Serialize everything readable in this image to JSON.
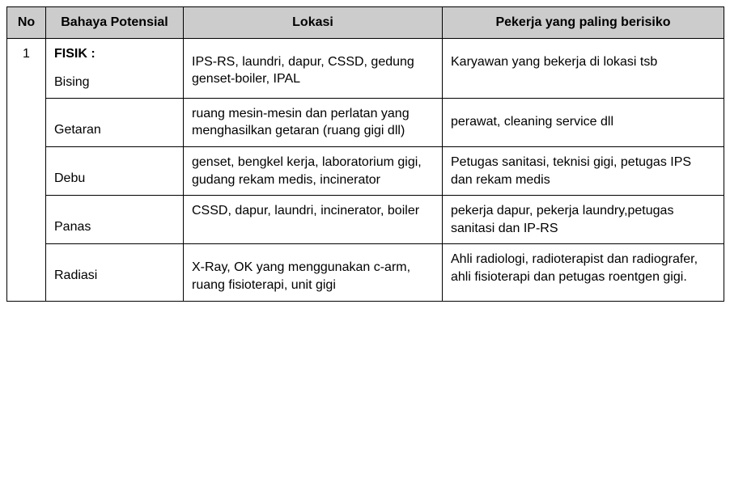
{
  "columns": {
    "no": "No",
    "hazard": "Bahaya Potensial",
    "location": "Lokasi",
    "workers": "Pekerja yang paling berisiko"
  },
  "group_no": "1",
  "category_heading": "FISIK :",
  "rows": [
    {
      "hazard": "Bising",
      "location": "IPS-RS, laundri, dapur, CSSD, gedung genset-boiler, IPAL",
      "workers": "Karyawan yang bekerja di lokasi tsb"
    },
    {
      "hazard": "Getaran",
      "location": "ruang mesin-mesin dan perlatan yang menghasilkan getaran (ruang gigi dll)",
      "workers": "perawat, cleaning service dll"
    },
    {
      "hazard": "Debu",
      "location": "genset, bengkel kerja, laboratorium gigi, gudang rekam medis, incinerator",
      "workers": "Petugas sanitasi, teknisi gigi, petugas IPS dan rekam medis"
    },
    {
      "hazard": "Panas",
      "location": "CSSD, dapur, laundri, incinerator, boiler",
      "workers": "pekerja dapur, pekerja laundry,petugas sanitasi dan IP-RS"
    },
    {
      "hazard": "Radiasi",
      "location": "X-Ray, OK yang menggunakan c-arm, ruang fisioterapi, unit gigi",
      "workers": "Ahli radiologi, radioterapist dan radiografer, ahli fisioterapi dan petugas roentgen gigi."
    }
  ]
}
